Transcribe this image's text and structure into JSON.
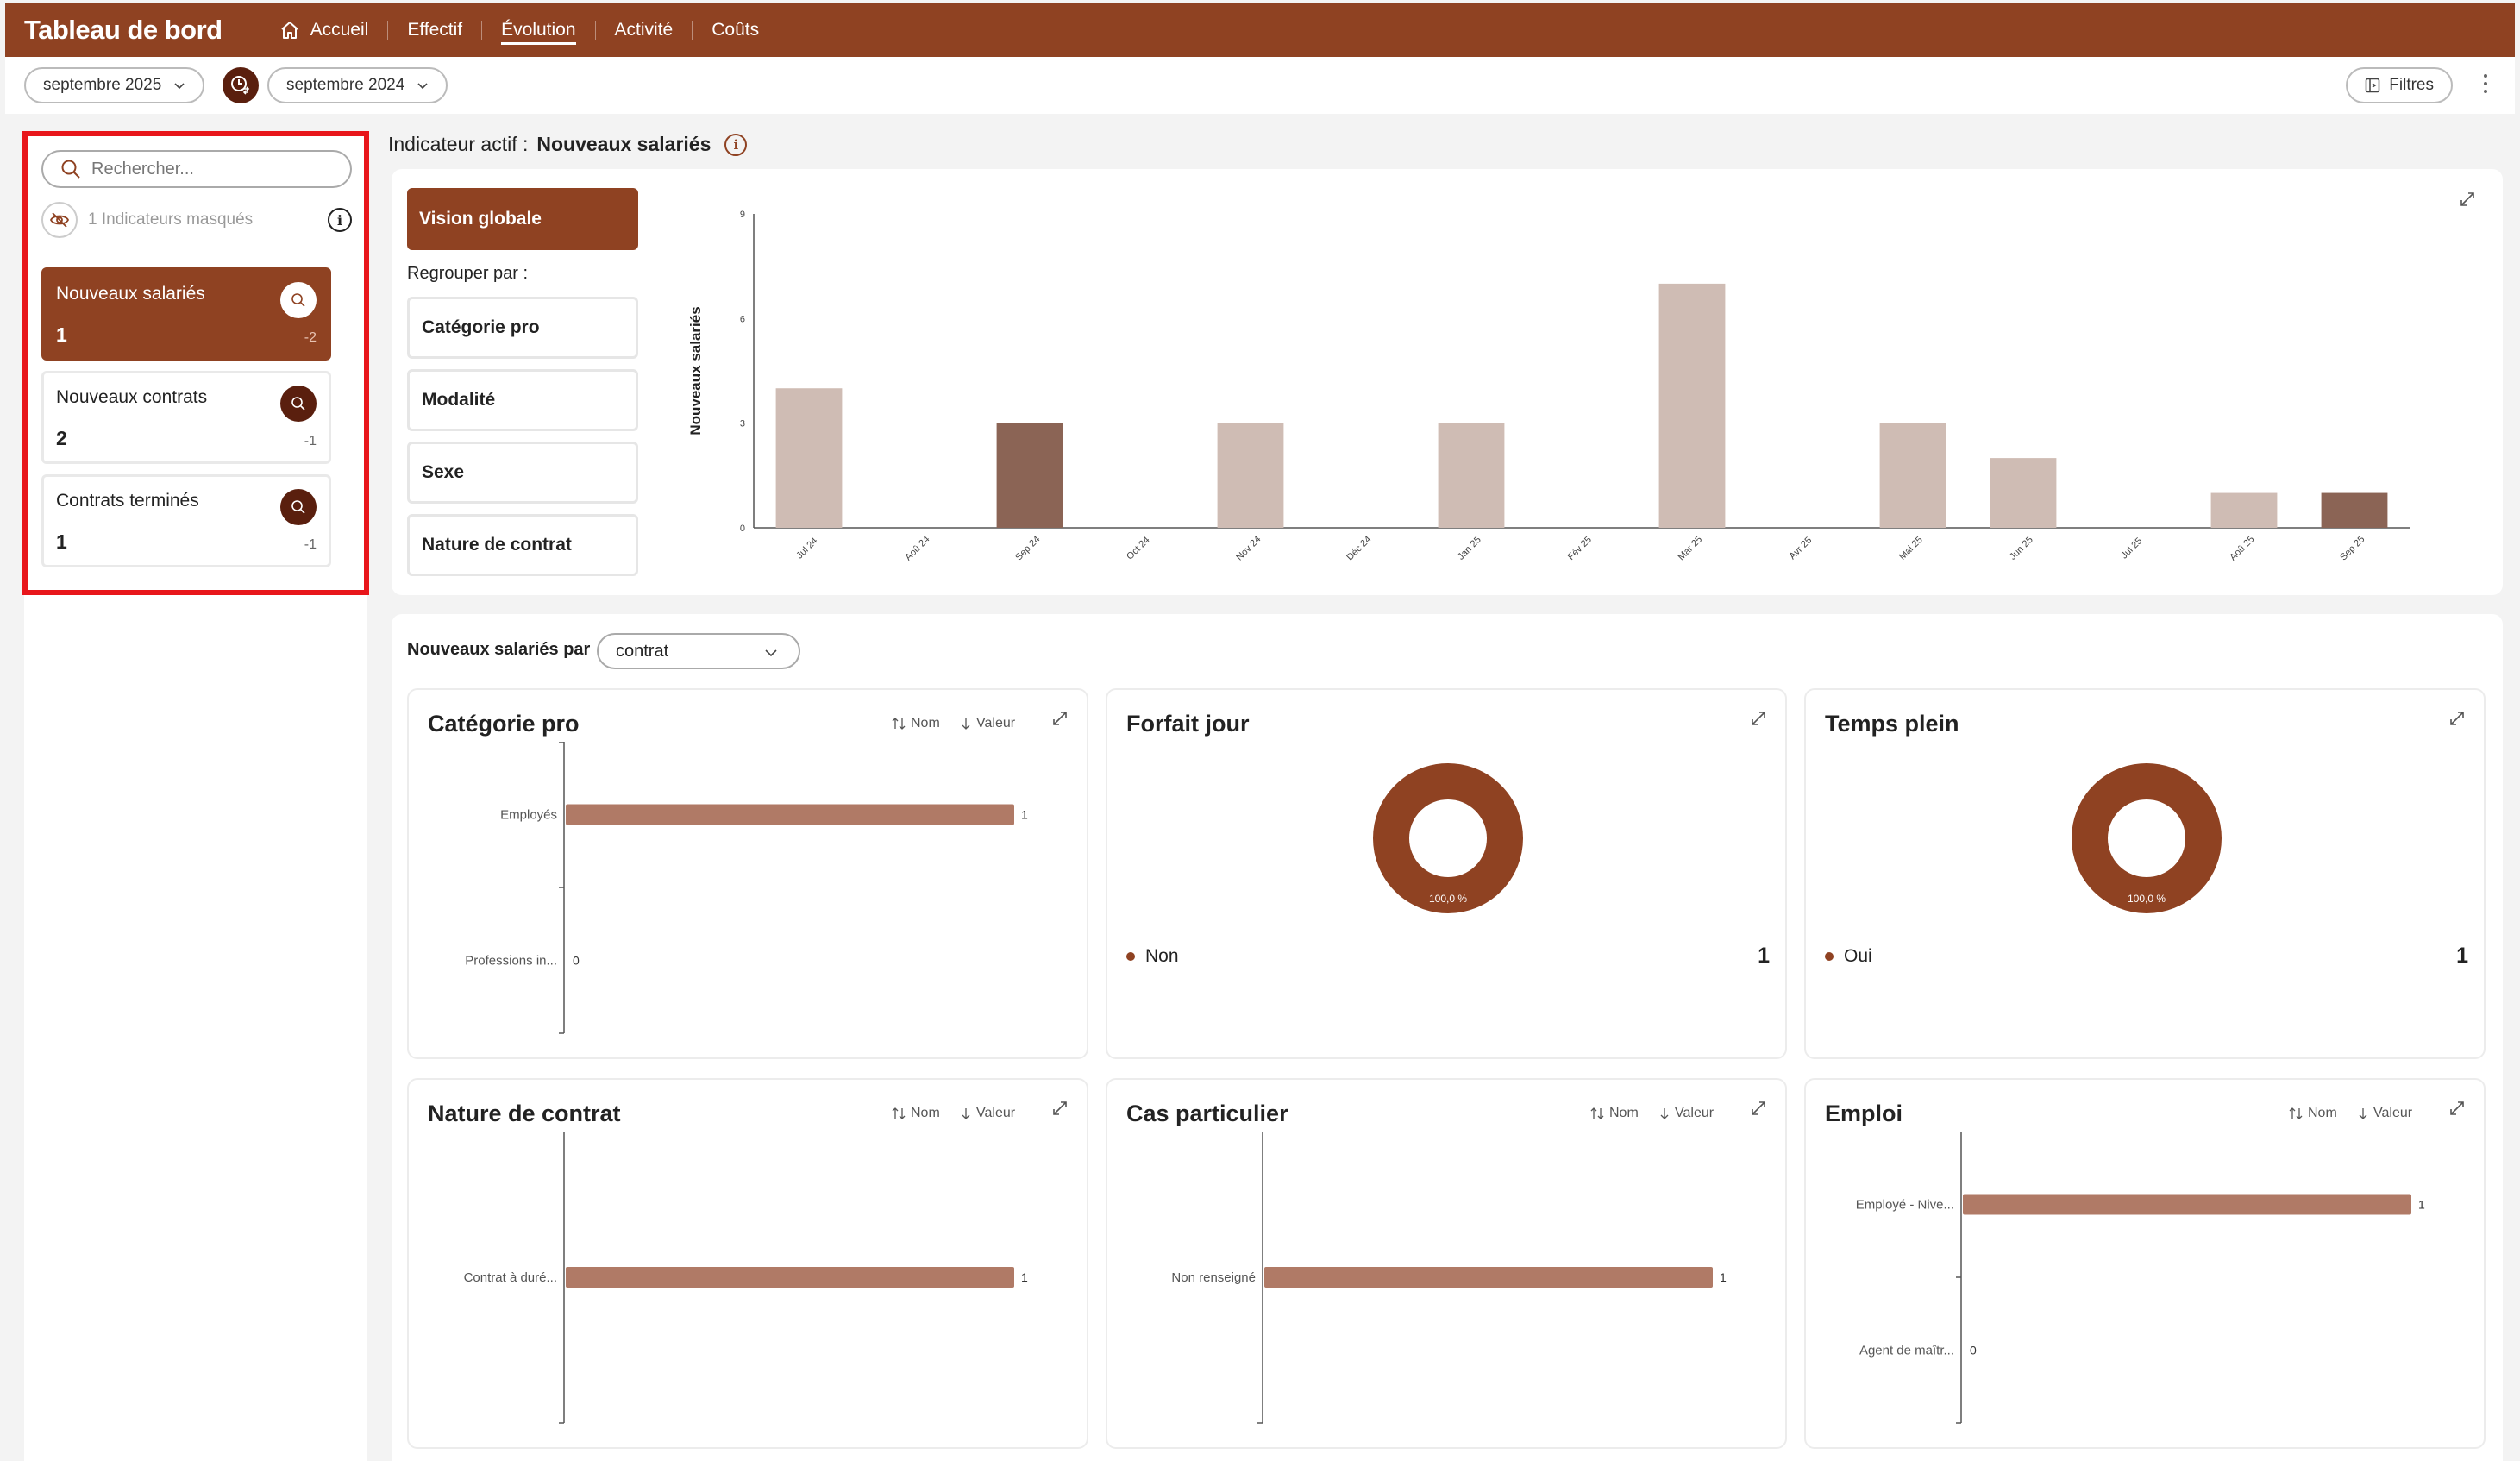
{
  "app_title": "Tableau de bord",
  "nav": [
    {
      "label": "Accueil",
      "icon": "home-icon"
    },
    {
      "label": "Effectif"
    },
    {
      "label": "Évolution",
      "active": true
    },
    {
      "label": "Activité"
    },
    {
      "label": "Coûts"
    }
  ],
  "period": {
    "current": "septembre 2025",
    "compare": "septembre 2024"
  },
  "filters_label": "Filtres",
  "sidebar": {
    "search_placeholder": "Rechercher...",
    "hidden_text": "1 Indicateurs masqués",
    "kpis": [
      {
        "name": "Nouveaux salariés",
        "value": "1",
        "delta": "-2",
        "active": true
      },
      {
        "name": "Nouveaux contrats",
        "value": "2",
        "delta": "-1"
      },
      {
        "name": "Contrats terminés",
        "value": "1",
        "delta": "-1"
      }
    ]
  },
  "active_indicator": {
    "prefix": "Indicateur actif :",
    "name": "Nouveaux salariés"
  },
  "grouping": {
    "vision_label": "Vision globale",
    "group_label": "Regrouper par :",
    "options": [
      "Catégorie pro",
      "Modalité",
      "Sexe",
      "Nature de contrat"
    ]
  },
  "chart_data": [
    {
      "type": "bar",
      "ylabel": "Nouveaux salariés",
      "categories": [
        "Jul 24",
        "Aoû 24",
        "Sep 24",
        "Oct 24",
        "Nov 24",
        "Déc 24",
        "Jan 25",
        "Fév 25",
        "Mar 25",
        "Avr 25",
        "Mai 25",
        "Jun 25",
        "Jul 25",
        "Aoû 25",
        "Sep 25"
      ],
      "values": [
        4,
        0,
        3,
        0,
        3,
        0,
        3,
        0,
        7,
        0,
        3,
        2,
        0,
        1,
        1
      ],
      "highlighted": [
        "Sep 24",
        "Sep 25"
      ],
      "yticks": [
        0,
        3,
        6,
        9
      ],
      "ylim": [
        0,
        9
      ],
      "colors": {
        "normal": "#cfbcb4",
        "highlight": "#8b6455"
      }
    },
    {
      "type": "bar",
      "orientation": "horizontal",
      "title": "Catégorie pro",
      "categories": [
        "Employés",
        "Professions in..."
      ],
      "values": [
        1,
        0
      ]
    },
    {
      "type": "pie",
      "title": "Forfait jour",
      "slices": [
        {
          "label": "Non",
          "value": 1
        }
      ],
      "center_label": "100,0 %"
    },
    {
      "type": "pie",
      "title": "Temps plein",
      "slices": [
        {
          "label": "Oui",
          "value": 1
        }
      ],
      "center_label": "100,0 %"
    },
    {
      "type": "bar",
      "orientation": "horizontal",
      "title": "Nature de contrat",
      "categories": [
        "Contrat à duré..."
      ],
      "values": [
        1
      ]
    },
    {
      "type": "bar",
      "orientation": "horizontal",
      "title": "Cas particulier",
      "categories": [
        "Non renseigné"
      ],
      "values": [
        1
      ]
    },
    {
      "type": "bar",
      "orientation": "horizontal",
      "title": "Emploi",
      "categories": [
        "Employé - Nive...",
        "Agent de maîtr..."
      ],
      "values": [
        1,
        0
      ]
    }
  ],
  "breakdown": {
    "label": "Nouveaux salariés par",
    "select_value": "contrat"
  },
  "sort": {
    "name": "Nom",
    "value": "Valeur"
  },
  "colors": {
    "brand": "#8f4222",
    "dark": "#5a1f0e",
    "bar": "#b07a66",
    "highlight_box": "#e8161b"
  }
}
